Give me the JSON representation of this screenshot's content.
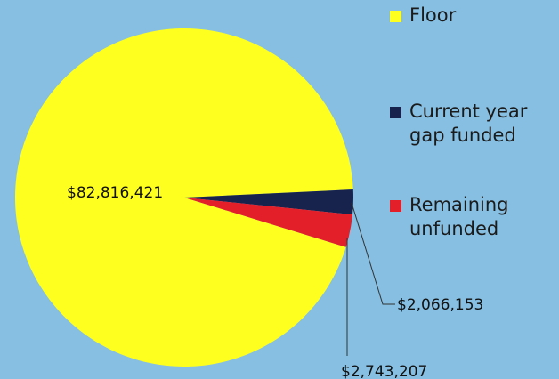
{
  "chart_data": {
    "type": "pie",
    "categories": [
      "Floor",
      "Current year gap funded",
      "Remaining unfunded"
    ],
    "values": [
      82816421,
      2066153,
      2743207
    ],
    "value_labels": [
      "$82,816,421",
      "$2,066,153",
      "$2,743,207"
    ],
    "colors": [
      "#ffff1f",
      "#17234d",
      "#e3202a"
    ]
  }
}
